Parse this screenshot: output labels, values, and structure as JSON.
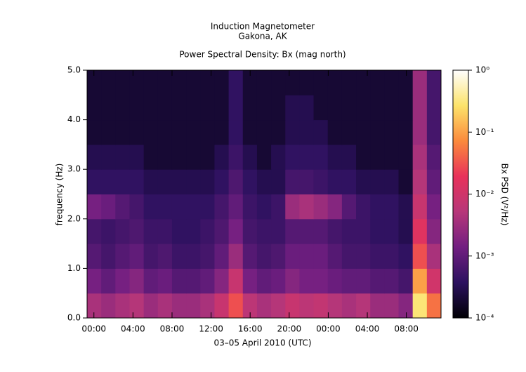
{
  "chart_data": {
    "type": "spectrogram",
    "title": "Induction Magnetometer",
    "subtitle": "Gakona, AK",
    "plot_title": "Power Spectral Density: Bx (mag north)",
    "xlabel": "03–05 April 2010 (UTC)",
    "ylabel": "frequency (Hz)",
    "colorbar_label": "Bx PSD (V²/Hz)",
    "xlim": [
      -0.7,
      35.55
    ],
    "ylim": [
      0,
      5
    ],
    "clim": [
      0.0001,
      1
    ],
    "log_color": true,
    "xticks": [
      {
        "value": 0,
        "label": "00:00"
      },
      {
        "value": 4,
        "label": "04:00"
      },
      {
        "value": 8,
        "label": "08:00"
      },
      {
        "value": 12,
        "label": "12:00"
      },
      {
        "value": 16,
        "label": "16:00"
      },
      {
        "value": 20,
        "label": "20:00"
      },
      {
        "value": 24,
        "label": "00:00"
      },
      {
        "value": 28,
        "label": "04:00"
      },
      {
        "value": 32,
        "label": "08:00"
      }
    ],
    "yticks": [
      {
        "value": 0,
        "label": "0.0"
      },
      {
        "value": 1,
        "label": "1.0"
      },
      {
        "value": 2,
        "label": "2.0"
      },
      {
        "value": 3,
        "label": "3.0"
      },
      {
        "value": 4,
        "label": "4.0"
      },
      {
        "value": 5,
        "label": "5.0"
      }
    ],
    "cticks": [
      {
        "value": 0.0001,
        "label": "10⁻⁴"
      },
      {
        "value": 0.001,
        "label": "10⁻³"
      },
      {
        "value": 0.01,
        "label": "10⁻²"
      },
      {
        "value": 0.1,
        "label": "10⁻¹"
      },
      {
        "value": 1,
        "label": "10⁰"
      }
    ],
    "colormap": [
      "#000004",
      "#2c115f",
      "#721f81",
      "#b73779",
      "#e8325a",
      "#fb8a3c",
      "#fce36a",
      "#ffffff"
    ],
    "xbins": [
      -0.7,
      0.75,
      2.2,
      3.65,
      5.1,
      6.55,
      8,
      9.45,
      10.9,
      12.35,
      13.8,
      15.25,
      16.7,
      18.15,
      19.6,
      21.05,
      22.5,
      23.95,
      25.4,
      26.85,
      28.3,
      29.75,
      31.2,
      32.65,
      34.1,
      35.55
    ],
    "ybins": [
      0,
      0.5,
      1,
      1.5,
      2,
      2.5,
      3,
      3.5,
      4,
      4.5,
      5
    ],
    "values": [
      [
        0.004,
        0.003,
        0.004,
        0.005,
        0.003,
        0.004,
        0.003,
        0.003,
        0.004,
        0.008,
        0.03,
        0.006,
        0.004,
        0.005,
        0.008,
        0.006,
        0.007,
        0.005,
        0.004,
        0.005,
        0.003,
        0.003,
        0.002,
        0.3,
        0.05
      ],
      [
        0.0015,
        0.001,
        0.0015,
        0.002,
        0.001,
        0.0012,
        0.0008,
        0.0008,
        0.001,
        0.002,
        0.008,
        0.0015,
        0.001,
        0.0012,
        0.002,
        0.0015,
        0.0015,
        0.0012,
        0.001,
        0.001,
        0.0008,
        0.0008,
        0.0006,
        0.1,
        0.01
      ],
      [
        0.0008,
        0.0006,
        0.0008,
        0.001,
        0.0006,
        0.0007,
        0.0005,
        0.0005,
        0.0006,
        0.001,
        0.003,
        0.0008,
        0.0006,
        0.0007,
        0.0012,
        0.0012,
        0.0012,
        0.0008,
        0.0006,
        0.0006,
        0.0005,
        0.0005,
        0.0004,
        0.03,
        0.004
      ],
      [
        0.0006,
        0.0005,
        0.0006,
        0.0007,
        0.0005,
        0.0005,
        0.0004,
        0.0004,
        0.0005,
        0.0007,
        0.0015,
        0.0006,
        0.0005,
        0.0005,
        0.0008,
        0.0008,
        0.0008,
        0.0006,
        0.0005,
        0.0005,
        0.0004,
        0.0004,
        0.0003,
        0.015,
        0.002
      ],
      [
        0.0015,
        0.0012,
        0.0008,
        0.0006,
        0.0004,
        0.0004,
        0.0004,
        0.0004,
        0.0004,
        0.0006,
        0.001,
        0.0005,
        0.0004,
        0.0005,
        0.003,
        0.004,
        0.003,
        0.002,
        0.0008,
        0.0005,
        0.0004,
        0.0004,
        0.0003,
        0.008,
        0.0015
      ],
      [
        0.0004,
        0.0004,
        0.0004,
        0.0004,
        0.0003,
        0.0003,
        0.0003,
        0.0003,
        0.0003,
        0.0004,
        0.0007,
        0.0004,
        0.0003,
        0.0003,
        0.0006,
        0.0006,
        0.0005,
        0.0004,
        0.0004,
        0.0003,
        0.0003,
        0.0003,
        0.0002,
        0.005,
        0.001
      ],
      [
        0.0003,
        0.0003,
        0.0003,
        0.0003,
        0.0002,
        0.0002,
        0.0002,
        0.0002,
        0.0002,
        0.0003,
        0.0005,
        0.0003,
        0.0002,
        0.0003,
        0.0004,
        0.0004,
        0.0004,
        0.0003,
        0.0003,
        0.0002,
        0.0002,
        0.0002,
        0.0002,
        0.004,
        0.0008
      ],
      [
        0.0002,
        0.0002,
        0.0002,
        0.0002,
        0.0002,
        0.0002,
        0.0002,
        0.0002,
        0.0002,
        0.0002,
        0.0004,
        0.0002,
        0.0002,
        0.0002,
        0.0003,
        0.0003,
        0.0003,
        0.0002,
        0.0002,
        0.0002,
        0.0002,
        0.0002,
        0.0002,
        0.003,
        0.0006
      ],
      [
        0.0002,
        0.0002,
        0.0002,
        0.0002,
        0.0002,
        0.0002,
        0.0002,
        0.0002,
        0.0002,
        0.0002,
        0.0004,
        0.0002,
        0.0002,
        0.0002,
        0.0003,
        0.0003,
        0.0002,
        0.0002,
        0.0002,
        0.0002,
        0.0002,
        0.0002,
        0.0002,
        0.003,
        0.0006
      ],
      [
        0.0002,
        0.0002,
        0.0002,
        0.0002,
        0.0002,
        0.0002,
        0.0002,
        0.0002,
        0.0002,
        0.0002,
        0.0004,
        0.0002,
        0.0002,
        0.0002,
        0.0002,
        0.0002,
        0.0002,
        0.0002,
        0.0002,
        0.0002,
        0.0002,
        0.0002,
        0.0002,
        0.003,
        0.0006
      ]
    ]
  }
}
